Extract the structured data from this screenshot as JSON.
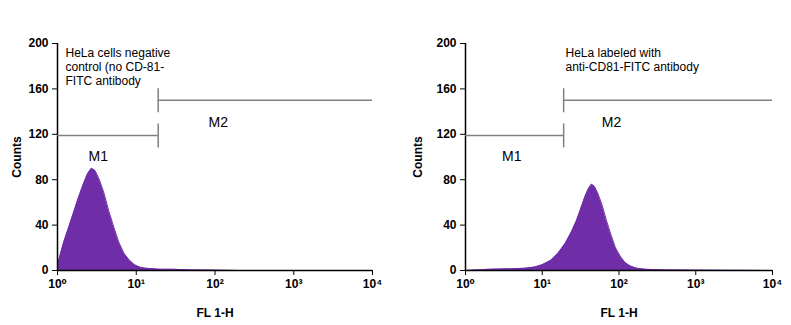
{
  "chart_data": [
    {
      "type": "area",
      "annotation": [
        "HeLa cells negative",
        "control (no CD-81-",
        "FITC antibody"
      ],
      "x_label": "FL 1-H",
      "y_label": "Counts",
      "x": [
        1,
        1.2,
        1.5,
        1.8,
        2.1,
        2.4,
        2.7,
        3.0,
        3.4,
        3.9,
        4.5,
        5.2,
        6,
        7,
        8.2,
        9.5,
        11,
        13,
        16,
        20,
        30,
        50,
        100,
        200,
        10000
      ],
      "values": [
        5,
        25,
        45,
        62,
        75,
        85,
        90,
        88,
        80,
        68,
        52,
        38,
        25,
        15,
        9,
        5,
        3,
        2,
        1.5,
        1,
        1,
        0.5,
        0.3,
        0,
        0
      ],
      "color": "#6f2da8",
      "log": "x",
      "xlim": [
        1,
        10000
      ],
      "xticks": [
        {
          "value": 1,
          "label": "10⁰"
        },
        {
          "value": 10,
          "label": "10¹"
        },
        {
          "value": 100,
          "label": "10²"
        },
        {
          "value": 1000,
          "label": "10³"
        },
        {
          "value": 10000,
          "label": "10⁴"
        }
      ],
      "ylim": [
        0,
        200
      ],
      "yticks": [
        0,
        40,
        80,
        120,
        160,
        200
      ],
      "gates": [
        {
          "label": "M1",
          "x": [
            1,
            19
          ],
          "y": 119,
          "label_x": 3.3,
          "label_y": 100
        },
        {
          "label": "M2",
          "x": [
            19,
            10000
          ],
          "y": 150,
          "label_x": 110,
          "label_y": 130
        }
      ]
    },
    {
      "type": "area",
      "annotation": [
        "HeLa labeled with",
        "anti-CD81-FITC antibody"
      ],
      "x_label": "FL 1-H",
      "y_label": "Counts",
      "x": [
        1,
        2,
        4,
        6,
        8,
        10,
        13,
        16,
        20,
        24,
        28,
        32,
        36,
        40,
        44,
        48,
        53,
        60,
        68,
        78,
        90,
        105,
        120,
        140,
        170,
        220,
        400,
        1000,
        10000
      ],
      "values": [
        0,
        1,
        1.5,
        2,
        3,
        5,
        9,
        15,
        24,
        34,
        44,
        55,
        65,
        72,
        76,
        74,
        68,
        58,
        45,
        32,
        20,
        12,
        7,
        4,
        2,
        1,
        0.5,
        0.3,
        0
      ],
      "color": "#6f2da8",
      "log": "x",
      "xlim": [
        1,
        10000
      ],
      "xticks": [
        {
          "value": 1,
          "label": "10⁰"
        },
        {
          "value": 10,
          "label": "10¹"
        },
        {
          "value": 100,
          "label": "10²"
        },
        {
          "value": 1000,
          "label": "10³"
        },
        {
          "value": 10000,
          "label": "10⁴"
        }
      ],
      "ylim": [
        0,
        200
      ],
      "yticks": [
        0,
        40,
        80,
        120,
        160,
        200
      ],
      "gates": [
        {
          "label": "M1",
          "x": [
            1,
            19
          ],
          "y": 119,
          "label_x": 4,
          "label_y": 100
        },
        {
          "label": "M2",
          "x": [
            19,
            10000
          ],
          "y": 150,
          "label_x": 80,
          "label_y": 130
        }
      ]
    }
  ]
}
